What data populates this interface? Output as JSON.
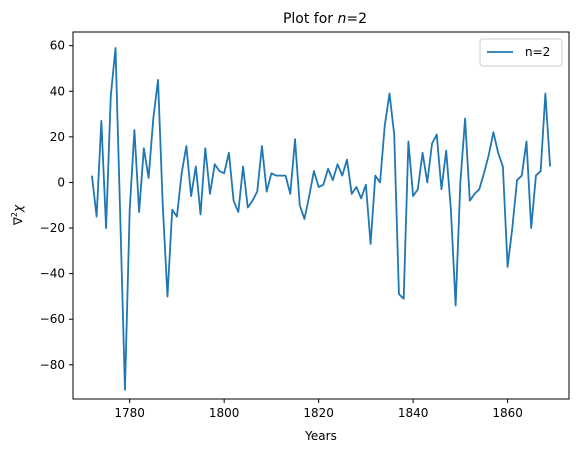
{
  "chart_data": {
    "type": "line",
    "title_prefix": "Plot for ",
    "title_var": "n",
    "title_suffix": "=2",
    "xlabel": "Years",
    "ylabel_nabla": "∇",
    "ylabel_sup": "2",
    "ylabel_chi": "χ",
    "xlim": [
      1768,
      1873
    ],
    "ylim": [
      -95,
      66
    ],
    "x_ticks": [
      1780,
      1800,
      1820,
      1840,
      1860
    ],
    "y_ticks": [
      -80,
      -60,
      -40,
      -20,
      0,
      20,
      40,
      60
    ],
    "grid": false,
    "legend_position": "top-right",
    "series": [
      {
        "name": "n=2",
        "color": "#1f77b4",
        "x": [
          1772,
          1773,
          1774,
          1775,
          1776,
          1777,
          1778,
          1779,
          1780,
          1781,
          1782,
          1783,
          1784,
          1785,
          1786,
          1787,
          1788,
          1789,
          1790,
          1791,
          1792,
          1793,
          1794,
          1795,
          1796,
          1797,
          1798,
          1799,
          1800,
          1801,
          1802,
          1803,
          1804,
          1805,
          1806,
          1807,
          1808,
          1809,
          1810,
          1811,
          1812,
          1813,
          1814,
          1815,
          1816,
          1817,
          1818,
          1819,
          1820,
          1821,
          1822,
          1823,
          1824,
          1825,
          1826,
          1827,
          1828,
          1829,
          1830,
          1831,
          1832,
          1833,
          1834,
          1835,
          1836,
          1837,
          1838,
          1839,
          1840,
          1841,
          1842,
          1843,
          1844,
          1845,
          1846,
          1847,
          1848,
          1849,
          1850,
          1851,
          1852,
          1853,
          1854,
          1855,
          1856,
          1857,
          1858,
          1859,
          1860,
          1861,
          1862,
          1863,
          1864,
          1865,
          1866,
          1867,
          1868,
          1869
        ],
        "y": [
          3,
          -15,
          27,
          -20,
          38,
          59,
          -15,
          -91,
          -12,
          23,
          -13,
          15,
          2,
          28,
          45,
          -10,
          -50,
          -12,
          -15,
          4,
          16,
          -6,
          7,
          -14,
          15,
          -5,
          8,
          5,
          4,
          13,
          -8,
          -13,
          7,
          -11,
          -8,
          -4,
          16,
          -4,
          4,
          3,
          3,
          3,
          -5,
          19,
          -10,
          -16,
          -6,
          5,
          -2,
          -1,
          6,
          1,
          8,
          3,
          10,
          -5,
          -2,
          -7,
          -1,
          -27,
          3,
          0,
          25,
          39,
          21,
          -49,
          -51,
          18,
          -6,
          -3,
          13,
          0,
          17,
          21,
          -3,
          14,
          -12,
          -54,
          0,
          28,
          -8,
          -5,
          -3,
          4,
          12,
          22,
          13,
          7,
          -37,
          -20,
          1,
          3,
          18,
          -20,
          3,
          5,
          39,
          7
        ]
      }
    ]
  }
}
